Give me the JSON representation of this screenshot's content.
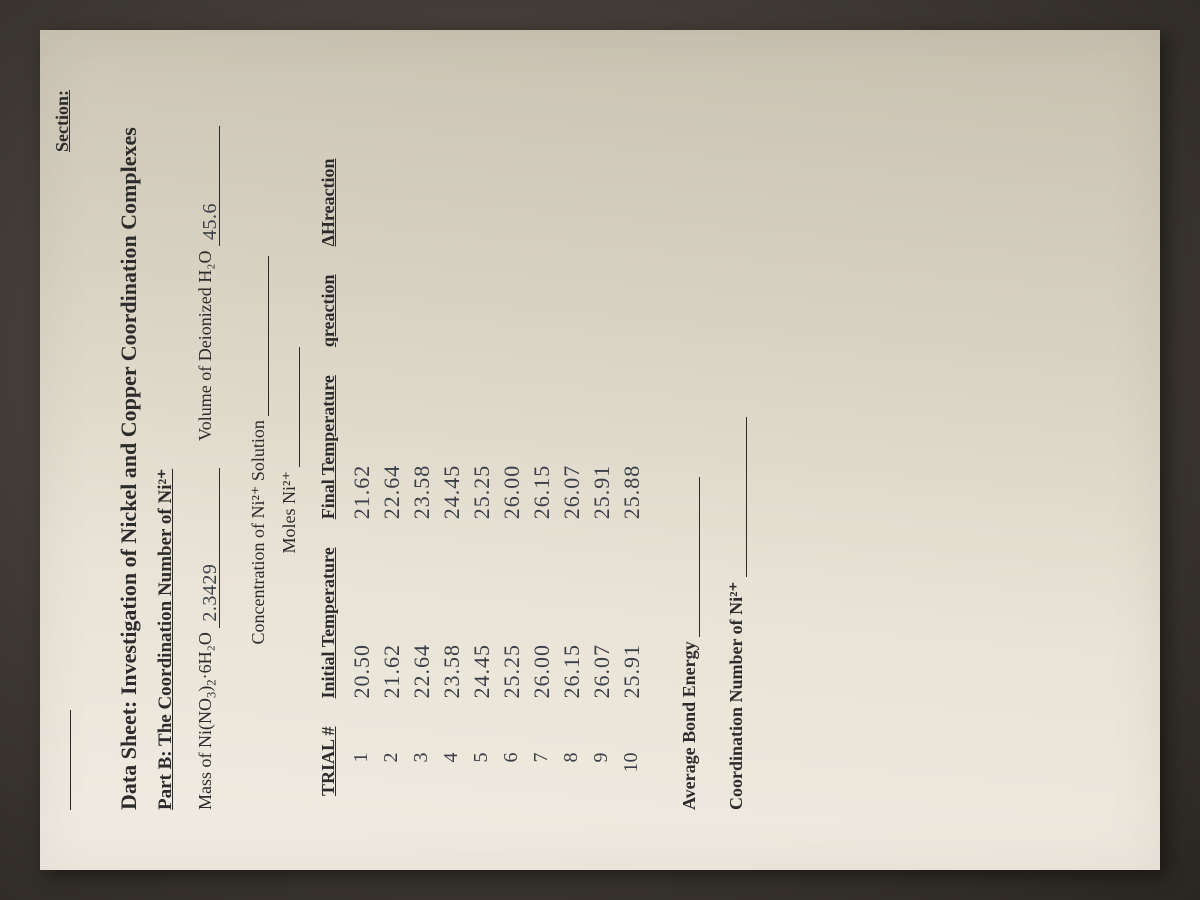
{
  "header": {
    "section_label": "Section:",
    "title": "Data Sheet: Investigation of Nickel and Copper Coordination Complexes",
    "part_b_prefix": "Part B:  ",
    "part_b_underlined": "The Coordination Number of Ni²⁺"
  },
  "fields": {
    "mass_label_pre": "Mass of Ni(NO",
    "mass_label_post": "·6H₂O",
    "mass_value": "2.3429",
    "vol_label": "Volume of Deionized H₂O",
    "vol_value": "45.6",
    "conc_label": "Concentration of Ni²⁺ Solution",
    "conc_value": "",
    "moles_label": "Moles Ni²⁺",
    "moles_value": ""
  },
  "table": {
    "columns": [
      "TRIAL #",
      "Initial Temperature",
      "Final Temperature",
      "qreaction",
      "ΔHreaction"
    ],
    "rows": [
      {
        "trial": "1",
        "t_i": "20.50",
        "t_f": "21.62"
      },
      {
        "trial": "2",
        "t_i": "21.62",
        "t_f": "22.64"
      },
      {
        "trial": "3",
        "t_i": "22.64",
        "t_f": "23.58"
      },
      {
        "trial": "4",
        "t_i": "23.58",
        "t_f": "24.45"
      },
      {
        "trial": "5",
        "t_i": "24.45",
        "t_f": "25.25"
      },
      {
        "trial": "6",
        "t_i": "25.25",
        "t_f": "26.00"
      },
      {
        "trial": "7",
        "t_i": "26.00",
        "t_f": "26.15"
      },
      {
        "trial": "8",
        "t_i": "26.15",
        "t_f": "26.07"
      },
      {
        "trial": "9",
        "t_i": "26.07",
        "t_f": "25.91"
      },
      {
        "trial": "10",
        "t_i": "25.91",
        "t_f": "25.88"
      }
    ]
  },
  "footer": {
    "avg_bond_label": "Average Bond Energy",
    "coord_num_label": "Coordination Number of Ni²⁺"
  },
  "style": {
    "paper_bg_light": "#f0ece2",
    "paper_bg_dark": "#c8c1b0",
    "print_color": "#2b2b2b",
    "handwriting_color": "#3a3e46",
    "backdrop": "#3a3530",
    "handwriting_font": "Comic Sans MS",
    "print_font": "Times New Roman",
    "print_size_pt": 18,
    "hand_size_pt": 21,
    "rotation_deg": -90
  }
}
